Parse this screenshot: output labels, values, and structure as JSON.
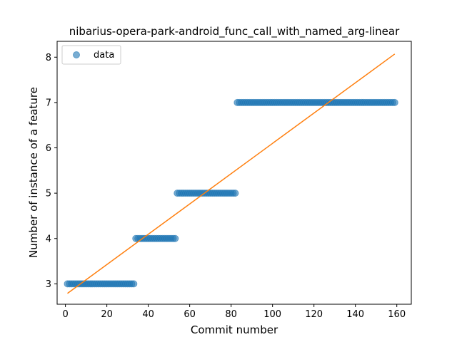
{
  "chart_data": {
    "type": "scatter",
    "title": "nibarius-opera-park-android_func_call_with_named_arg-linear",
    "xlabel": "Commit number",
    "ylabel": "Number of instance of a feature",
    "xlim": [
      -4,
      167
    ],
    "ylim": [
      2.55,
      8.35
    ],
    "xticks": [
      0,
      20,
      40,
      60,
      80,
      100,
      120,
      140,
      160
    ],
    "yticks": [
      3,
      4,
      5,
      6,
      7,
      8
    ],
    "grid": false,
    "legend": {
      "position": "top-left",
      "entries": [
        "data"
      ]
    },
    "segments": [
      {
        "x_start": 1,
        "x_end": 33,
        "y": 3
      },
      {
        "x_start": 34,
        "x_end": 53,
        "y": 4
      },
      {
        "x_start": 54,
        "x_end": 82,
        "y": 5
      },
      {
        "x_start": 83,
        "x_end": 159,
        "y": 7
      }
    ],
    "series": [
      {
        "name": "data",
        "kind": "scatter",
        "color": "#1f77b4",
        "alpha": 0.6
      },
      {
        "kind": "line",
        "color": "#ff7f0e",
        "x": [
          1,
          159
        ],
        "y": [
          2.79,
          8.07
        ]
      }
    ]
  }
}
